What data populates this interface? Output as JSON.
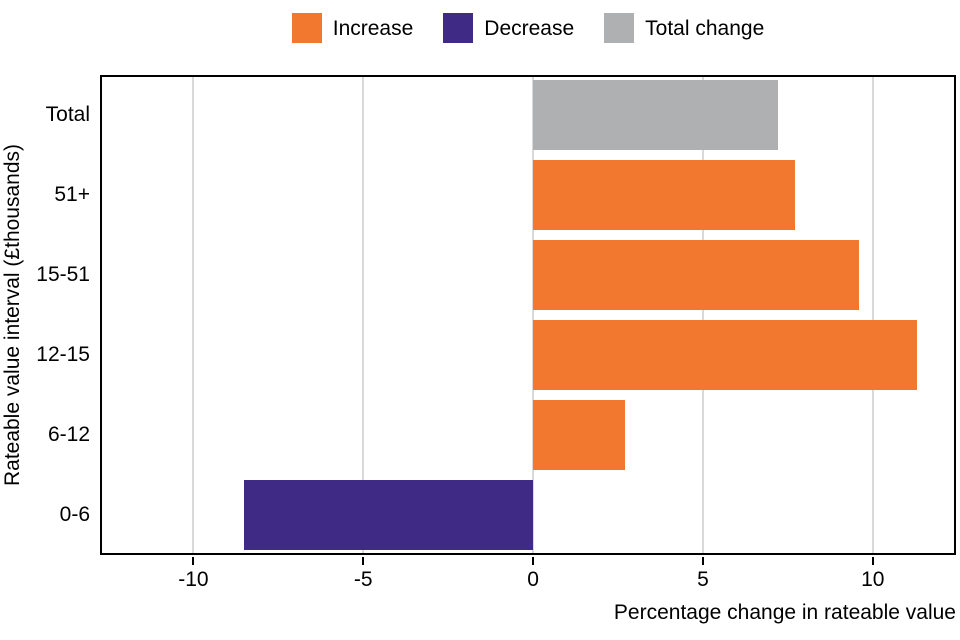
{
  "chart_data": {
    "type": "bar",
    "orientation": "horizontal",
    "xlabel": "Percentage change in rateable value",
    "ylabel": "Rateable value interval (£thousands)",
    "categories": [
      "Total",
      "51+",
      "15-51",
      "12-15",
      "6-12",
      "0-6"
    ],
    "values": [
      7.2,
      7.7,
      9.6,
      11.3,
      2.7,
      -8.5
    ],
    "bar_colors": [
      "#AEB0B2",
      "#F1782E",
      "#F1782E",
      "#F1782E",
      "#F1782E",
      "#3F2B85"
    ],
    "xlim": [
      -12.75,
      12.45
    ],
    "xticks": [
      -10,
      -5,
      0,
      5,
      10
    ],
    "grid": "vertical-major",
    "legend": {
      "position": "top",
      "items": [
        {
          "label": "Increase",
          "color": "#F1782E"
        },
        {
          "label": "Decrease",
          "color": "#3F2B85"
        },
        {
          "label": "Total change",
          "color": "#AEB0B2"
        }
      ]
    },
    "style": {
      "gridline_color": "#D9D9D9",
      "panel_border_color": "#000000",
      "text_color": "#000000",
      "background": "#FFFFFF"
    }
  }
}
